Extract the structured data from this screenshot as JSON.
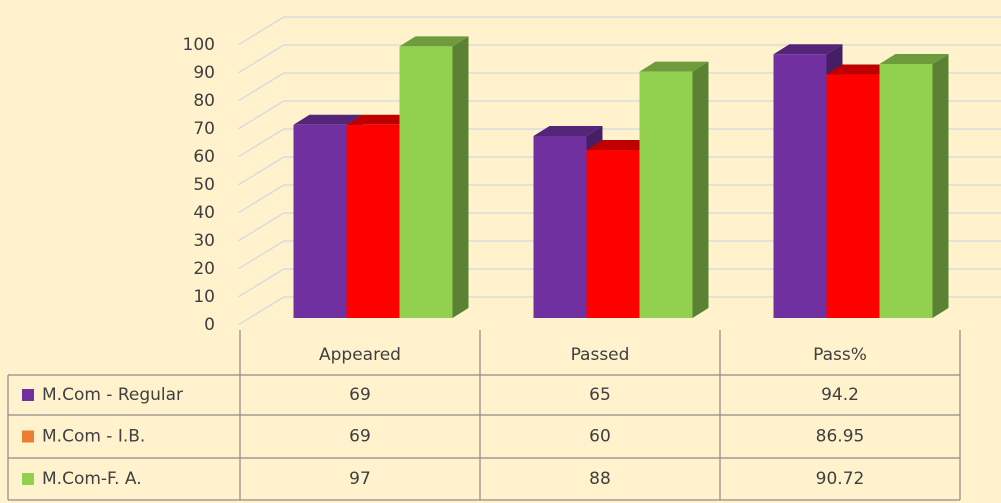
{
  "chart_data": {
    "type": "bar3d",
    "categories": [
      "Appeared",
      "Passed",
      "Pass%"
    ],
    "series": [
      {
        "name": "M.Com - Regular",
        "color": "#7030a0",
        "legend_color": "#7030a0",
        "values": [
          69,
          65,
          94.2
        ]
      },
      {
        "name": "M.Com - I.B.",
        "color": "#ff0000",
        "legend_color": "#ed7d31",
        "values": [
          69,
          60,
          86.95
        ]
      },
      {
        "name": "M.Com-F. A.",
        "color": "#92d050",
        "legend_color": "#92d050",
        "values": [
          97,
          88,
          90.72
        ]
      }
    ],
    "ylim": [
      0,
      100
    ],
    "yticks": [
      0,
      10,
      20,
      30,
      40,
      50,
      60,
      70,
      80,
      90,
      100
    ],
    "grid": true,
    "data_table": true
  }
}
